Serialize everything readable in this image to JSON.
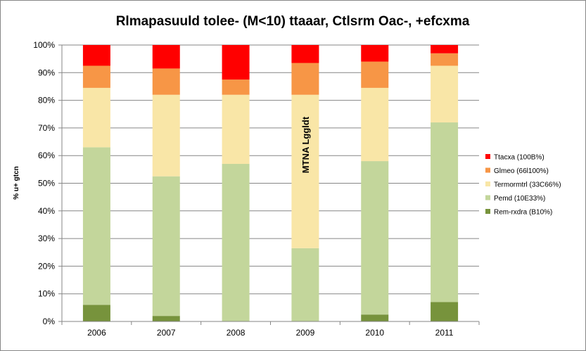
{
  "chart_data": {
    "type": "bar",
    "stacked": "percent",
    "title": "Rlmapasuuld tolee- (M<10) ttaaar, Ctlsrm Oac-, +efcxma",
    "ylabel": "% u+ gtcn",
    "xlabel": "",
    "ylim": [
      0,
      100
    ],
    "y_ticks": [
      "0%",
      "10%",
      "20%",
      "30%",
      "40%",
      "50%",
      "60%",
      "70%",
      "80%",
      "90%",
      "100%"
    ],
    "grid": "horizontal",
    "legend_position": "right",
    "categories": [
      "2006",
      "2007",
      "2008",
      "2009",
      "2010",
      "2011"
    ],
    "series": [
      {
        "name": "Rem-rxdra (B10%)",
        "color": "#77933c",
        "values": [
          6,
          2,
          0,
          0,
          2.5,
          7
        ]
      },
      {
        "name": "Pemd (10E33%)",
        "color": "#c3d69b",
        "values": [
          57,
          50.5,
          57,
          26.5,
          55.5,
          65
        ]
      },
      {
        "name": "Termormtrl (33C66%)",
        "color": "#f9e6a7",
        "values": [
          21.5,
          29.5,
          25,
          55.5,
          26.5,
          20.5
        ]
      },
      {
        "name": "Glmeo (66l100%)",
        "color": "#f79646",
        "values": [
          8,
          9.5,
          5.5,
          11.5,
          9.5,
          4.5
        ]
      },
      {
        "name": "Ttacxa (100B%)",
        "color": "#ff0000",
        "values": [
          7.5,
          8.5,
          12.5,
          6.5,
          6,
          3
        ]
      }
    ],
    "annotations": [
      {
        "text": "MTNA Lggldt",
        "category": "2009"
      }
    ]
  }
}
